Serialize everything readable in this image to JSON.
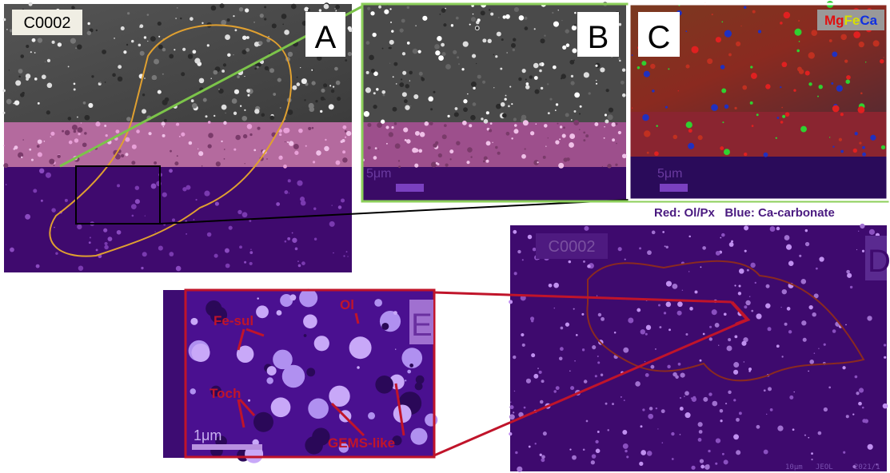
{
  "panels": [
    {
      "label": "A",
      "sample": "C0002"
    },
    {
      "label": "B",
      "scale": "5μm"
    },
    {
      "label": "C",
      "scale": "5μm",
      "legend": [
        "Mg",
        "Fe",
        "Ca"
      ]
    },
    {
      "label": "D",
      "sample": "C0002",
      "footer": [
        "10μm",
        "JEOL",
        "2021/1"
      ]
    },
    {
      "label": "E",
      "scale": "1μm",
      "annotations": [
        "Fe-sul",
        "Ol",
        "Toch",
        "GEMS-like"
      ]
    }
  ],
  "caption": "Red: Ol/Px   Blue: Ca-carbonate"
}
